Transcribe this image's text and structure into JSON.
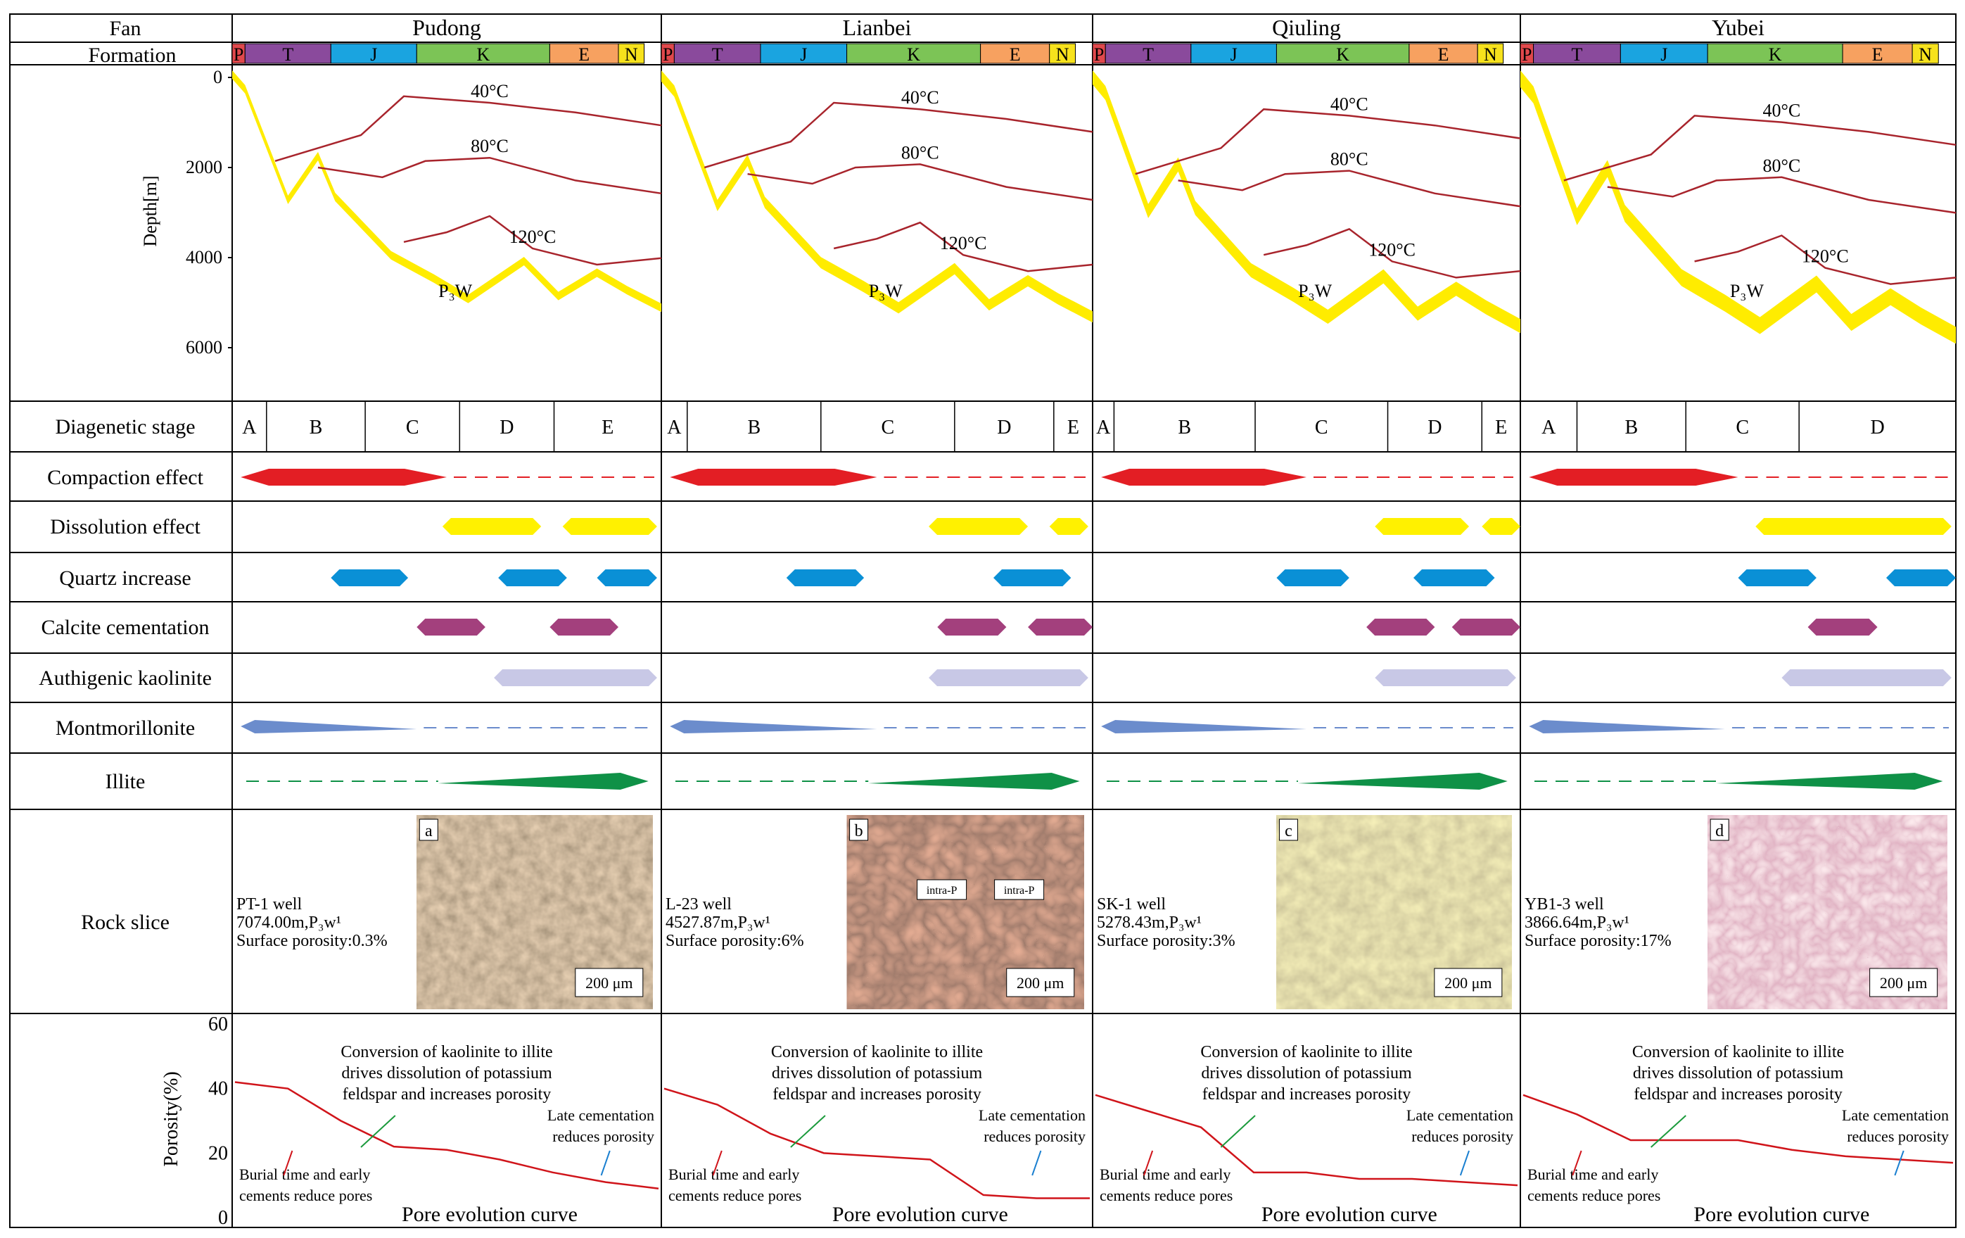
{
  "headers": {
    "fan": "Fan",
    "formation": "Formation"
  },
  "fans": [
    {
      "name": "Pudong",
      "depth_ticks": [
        "0",
        "2000",
        "4000",
        "6000"
      ],
      "depth_label": "Depth[m]",
      "iso_labels": [
        "40°C",
        "80°C",
        "120°C"
      ],
      "strat_label": "P₃W",
      "stages": [
        "A",
        "B",
        "C",
        "D",
        "E"
      ],
      "slice": {
        "letter": "a",
        "well": "PT-1 well",
        "depth": "7074.00m,P₃w¹",
        "porosity": "Surface porosity:0.3%",
        "scale": "200 μm"
      },
      "por_axis": [
        "0",
        "20",
        "40",
        "60"
      ],
      "por_label": "Porosity(%)",
      "porosity_series": [
        42,
        40,
        30,
        22,
        21,
        18,
        14,
        11,
        9
      ],
      "ann_conversion": [
        "Conversion of kaolinite to illite",
        "drives dissolution of potassium",
        "feldspar and increases porosity"
      ],
      "ann_burial": [
        "Burial time and early",
        "cements reduce pores"
      ],
      "ann_late": [
        "Late cementation",
        "reduces porosity"
      ],
      "curve_title": "Pore evolution curve"
    },
    {
      "name": "Lianbei",
      "iso_labels": [
        "40°C",
        "80°C",
        "120°C"
      ],
      "strat_label": "P₃W",
      "stages": [
        "A",
        "B",
        "C",
        "D",
        "E"
      ],
      "slice": {
        "letter": "b",
        "well": "L-23 well",
        "depth": "4527.87m,P₃w¹",
        "porosity": "Surface porosity:6%",
        "scale": "200 μm",
        "tags": [
          "intra-P",
          "intra-P"
        ]
      },
      "porosity_series": [
        40,
        35,
        26,
        20,
        19,
        18,
        7,
        6,
        6
      ],
      "ann_conversion": [
        "Conversion of kaolinite to illite",
        "drives dissolution of potassium",
        "feldspar and increases porosity"
      ],
      "ann_burial": [
        "Burial time and early",
        "cements reduce pores"
      ],
      "ann_late": [
        "Late cementation",
        "reduces porosity"
      ],
      "curve_title": "Pore evolution curve"
    },
    {
      "name": "Qiuling",
      "iso_labels": [
        "40°C",
        "80°C",
        "120°C"
      ],
      "strat_label": "P₃W",
      "stages": [
        "A",
        "B",
        "C",
        "D",
        "E"
      ],
      "slice": {
        "letter": "c",
        "well": "SK-1 well",
        "depth": "5278.43m,P₃w¹",
        "porosity": "Surface porosity:3%",
        "scale": "200 μm"
      },
      "porosity_series": [
        38,
        33,
        28,
        14,
        14,
        12,
        12,
        11,
        10
      ],
      "ann_conversion": [
        "Conversion of kaolinite to illite",
        "drives dissolution of potassium",
        "feldspar and increases porosity"
      ],
      "ann_burial": [
        "Burial time and early",
        "cements reduce pores"
      ],
      "ann_late": [
        "Late cementation",
        "reduces porosity"
      ],
      "curve_title": "Pore evolution curve"
    },
    {
      "name": "Yubei",
      "iso_labels": [
        "40°C",
        "80°C",
        "120°C"
      ],
      "strat_label": "P₃W",
      "stages": [
        "A",
        "B",
        "C",
        "D"
      ],
      "slice": {
        "letter": "d",
        "well": "YB1-3 well",
        "depth": "3866.64m,P₃w¹",
        "porosity": "Surface porosity:17%",
        "scale": "200 μm"
      },
      "porosity_series": [
        38,
        32,
        24,
        24,
        24,
        21,
        19,
        18,
        17
      ],
      "ann_conversion": [
        "Conversion of kaolinite to illite",
        "drives dissolution of potassium",
        "feldspar and increases porosity"
      ],
      "ann_burial": [
        "Burial time and early",
        "cements reduce pores"
      ],
      "ann_late": [
        "Late cementation",
        "reduces porosity"
      ],
      "curve_title": "Pore evolution curve"
    }
  ],
  "periods": [
    "P",
    "T",
    "J",
    "K",
    "E",
    "N"
  ],
  "period_colors": {
    "P": "#e0484c",
    "T": "#8a4a9c",
    "J": "#1aa4e0",
    "K": "#7cc456",
    "E": "#f7a160",
    "N": "#f7e21c"
  },
  "rows": [
    {
      "label": "Diagenetic stage"
    },
    {
      "label": "Compaction effect",
      "color": "#e31e24"
    },
    {
      "label": "Dissolution effect",
      "color": "#fff100"
    },
    {
      "label": "Quartz increase",
      "color": "#0a90d6"
    },
    {
      "label": "Calcite cementation",
      "color": "#a3407d"
    },
    {
      "label": "Authigenic kaolinite",
      "color": "#c8c8e6"
    },
    {
      "label": "Montmorillonite",
      "color": "#6b8ccc"
    },
    {
      "label": "Illite",
      "color": "#0f9147"
    },
    {
      "label": "Rock slice"
    }
  ],
  "burial_color": "#ffec00",
  "iso_color": "#a8242c"
}
